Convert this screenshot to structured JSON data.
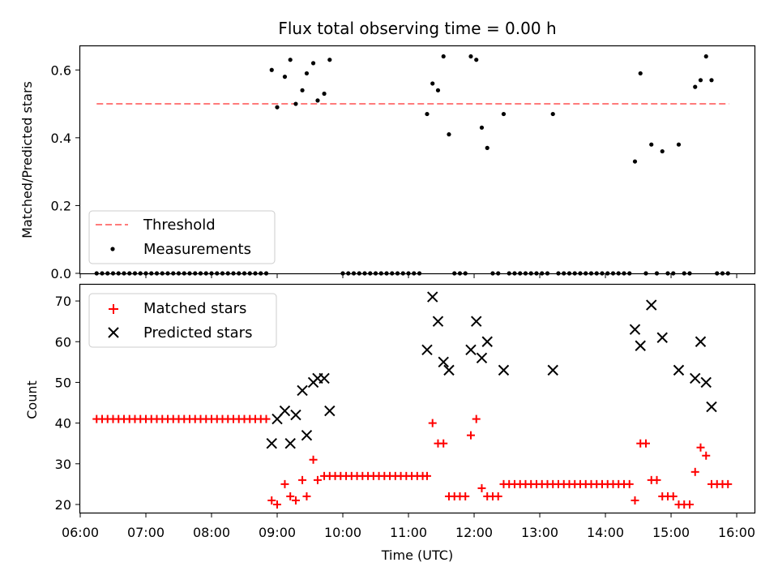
{
  "chart_data": [
    {
      "type": "scatter",
      "title": "Flux total observing time = 0.00 h",
      "xlabel": "",
      "ylabel": "Matched/Predicted stars",
      "xlim": [
        "06:00",
        "16:17"
      ],
      "ylim": [
        0,
        0.67
      ],
      "yticks": [
        0.0,
        0.2,
        0.4,
        0.6
      ],
      "ytick_labels": [
        "0.0",
        "0.2",
        "0.4",
        "0.6"
      ],
      "xticks": [
        "06:00",
        "07:00",
        "08:00",
        "09:00",
        "10:00",
        "11:00",
        "12:00",
        "13:00",
        "14:00",
        "15:00",
        "16:00"
      ],
      "legend_position": "lower-left",
      "threshold": {
        "name": "Threshold",
        "value": 0.5,
        "x_range": [
          "06:15",
          "15:53"
        ],
        "color": "#ff7b7b"
      },
      "measurements": {
        "name": "Measurements",
        "color": "#000000",
        "points": [
          [
            "08:55",
            0.6
          ],
          [
            "09:00",
            0.49
          ],
          [
            "09:07",
            0.58
          ],
          [
            "09:12",
            0.63
          ],
          [
            "09:17",
            0.5
          ],
          [
            "09:23",
            0.54
          ],
          [
            "09:27",
            0.59
          ],
          [
            "09:33",
            0.62
          ],
          [
            "09:37",
            0.51
          ],
          [
            "09:43",
            0.53
          ],
          [
            "09:48",
            0.63
          ],
          [
            "11:17",
            0.47
          ],
          [
            "11:22",
            0.56
          ],
          [
            "11:27",
            0.54
          ],
          [
            "11:32",
            0.64
          ],
          [
            "11:37",
            0.41
          ],
          [
            "11:57",
            0.64
          ],
          [
            "12:02",
            0.63
          ],
          [
            "12:07",
            0.43
          ],
          [
            "12:12",
            0.37
          ],
          [
            "12:27",
            0.47
          ],
          [
            "13:12",
            0.47
          ],
          [
            "14:27",
            0.33
          ],
          [
            "14:32",
            0.59
          ],
          [
            "14:42",
            0.38
          ],
          [
            "14:52",
            0.36
          ],
          [
            "15:07",
            0.38
          ],
          [
            "15:22",
            0.55
          ],
          [
            "15:27",
            0.57
          ],
          [
            "15:32",
            0.64
          ],
          [
            "15:37",
            0.57
          ]
        ],
        "zero_times": [
          "06:15",
          "06:20",
          "06:25",
          "06:30",
          "06:35",
          "06:40",
          "06:45",
          "06:50",
          "06:55",
          "07:00",
          "07:05",
          "07:10",
          "07:15",
          "07:20",
          "07:25",
          "07:30",
          "07:35",
          "07:40",
          "07:45",
          "07:50",
          "07:55",
          "08:00",
          "08:05",
          "08:10",
          "08:15",
          "08:20",
          "08:25",
          "08:30",
          "08:35",
          "08:40",
          "08:45",
          "08:50",
          "10:00",
          "10:05",
          "10:10",
          "10:15",
          "10:20",
          "10:25",
          "10:30",
          "10:35",
          "10:40",
          "10:45",
          "10:50",
          "10:55",
          "11:00",
          "11:05",
          "11:10",
          "11:42",
          "11:47",
          "11:52",
          "12:17",
          "12:22",
          "12:32",
          "12:37",
          "12:42",
          "12:47",
          "12:52",
          "12:57",
          "13:02",
          "13:07",
          "13:17",
          "13:22",
          "13:27",
          "13:32",
          "13:37",
          "13:42",
          "13:47",
          "13:52",
          "13:57",
          "14:02",
          "14:07",
          "14:12",
          "14:17",
          "14:22",
          "14:37",
          "14:47",
          "14:57",
          "15:02",
          "15:12",
          "15:17",
          "15:42",
          "15:47",
          "15:52"
        ]
      }
    },
    {
      "type": "scatter",
      "title": "",
      "xlabel": "Time (UTC)",
      "ylabel": "Count",
      "xlim": [
        "06:00",
        "16:17"
      ],
      "ylim": [
        18,
        74
      ],
      "yticks": [
        20,
        30,
        40,
        50,
        60,
        70
      ],
      "ytick_labels": [
        "20",
        "30",
        "40",
        "50",
        "60",
        "70"
      ],
      "xticks": [
        "06:00",
        "07:00",
        "08:00",
        "09:00",
        "10:00",
        "11:00",
        "12:00",
        "13:00",
        "14:00",
        "15:00",
        "16:00"
      ],
      "xtick_labels": [
        "06:00",
        "07:00",
        "08:00",
        "09:00",
        "10:00",
        "11:00",
        "12:00",
        "13:00",
        "14:00",
        "15:00",
        "16:00"
      ],
      "legend_position": "upper-left",
      "series": [
        {
          "name": "Matched stars",
          "marker": "plus",
          "color": "#ff0000",
          "points": [
            [
              "06:15",
              41
            ],
            [
              "06:20",
              41
            ],
            [
              "06:25",
              41
            ],
            [
              "06:30",
              41
            ],
            [
              "06:35",
              41
            ],
            [
              "06:40",
              41
            ],
            [
              "06:45",
              41
            ],
            [
              "06:50",
              41
            ],
            [
              "06:55",
              41
            ],
            [
              "07:00",
              41
            ],
            [
              "07:05",
              41
            ],
            [
              "07:10",
              41
            ],
            [
              "07:15",
              41
            ],
            [
              "07:20",
              41
            ],
            [
              "07:25",
              41
            ],
            [
              "07:30",
              41
            ],
            [
              "07:35",
              41
            ],
            [
              "07:40",
              41
            ],
            [
              "07:45",
              41
            ],
            [
              "07:50",
              41
            ],
            [
              "07:55",
              41
            ],
            [
              "08:00",
              41
            ],
            [
              "08:05",
              41
            ],
            [
              "08:10",
              41
            ],
            [
              "08:15",
              41
            ],
            [
              "08:20",
              41
            ],
            [
              "08:25",
              41
            ],
            [
              "08:30",
              41
            ],
            [
              "08:35",
              41
            ],
            [
              "08:40",
              41
            ],
            [
              "08:45",
              41
            ],
            [
              "08:50",
              41
            ],
            [
              "08:55",
              21
            ],
            [
              "09:00",
              20
            ],
            [
              "09:07",
              25
            ],
            [
              "09:12",
              22
            ],
            [
              "09:17",
              21
            ],
            [
              "09:23",
              26
            ],
            [
              "09:27",
              22
            ],
            [
              "09:33",
              31
            ],
            [
              "09:37",
              26
            ],
            [
              "09:43",
              27
            ],
            [
              "09:48",
              27
            ],
            [
              "09:53",
              27
            ],
            [
              "09:58",
              27
            ],
            [
              "10:03",
              27
            ],
            [
              "10:08",
              27
            ],
            [
              "10:13",
              27
            ],
            [
              "10:18",
              27
            ],
            [
              "10:23",
              27
            ],
            [
              "10:28",
              27
            ],
            [
              "10:33",
              27
            ],
            [
              "10:38",
              27
            ],
            [
              "10:43",
              27
            ],
            [
              "10:48",
              27
            ],
            [
              "10:53",
              27
            ],
            [
              "10:58",
              27
            ],
            [
              "11:03",
              27
            ],
            [
              "11:08",
              27
            ],
            [
              "11:13",
              27
            ],
            [
              "11:17",
              27
            ],
            [
              "11:22",
              40
            ],
            [
              "11:27",
              35
            ],
            [
              "11:32",
              35
            ],
            [
              "11:37",
              22
            ],
            [
              "11:42",
              22
            ],
            [
              "11:47",
              22
            ],
            [
              "11:52",
              22
            ],
            [
              "11:57",
              37
            ],
            [
              "12:02",
              41
            ],
            [
              "12:07",
              24
            ],
            [
              "12:12",
              22
            ],
            [
              "12:17",
              22
            ],
            [
              "12:22",
              22
            ],
            [
              "12:27",
              25
            ],
            [
              "12:32",
              25
            ],
            [
              "12:37",
              25
            ],
            [
              "12:42",
              25
            ],
            [
              "12:47",
              25
            ],
            [
              "12:52",
              25
            ],
            [
              "12:57",
              25
            ],
            [
              "13:02",
              25
            ],
            [
              "13:07",
              25
            ],
            [
              "13:12",
              25
            ],
            [
              "13:17",
              25
            ],
            [
              "13:22",
              25
            ],
            [
              "13:27",
              25
            ],
            [
              "13:32",
              25
            ],
            [
              "13:37",
              25
            ],
            [
              "13:42",
              25
            ],
            [
              "13:47",
              25
            ],
            [
              "13:52",
              25
            ],
            [
              "13:57",
              25
            ],
            [
              "14:02",
              25
            ],
            [
              "14:07",
              25
            ],
            [
              "14:12",
              25
            ],
            [
              "14:17",
              25
            ],
            [
              "14:22",
              25
            ],
            [
              "14:27",
              21
            ],
            [
              "14:32",
              35
            ],
            [
              "14:37",
              35
            ],
            [
              "14:42",
              26
            ],
            [
              "14:47",
              26
            ],
            [
              "14:52",
              22
            ],
            [
              "14:57",
              22
            ],
            [
              "15:02",
              22
            ],
            [
              "15:07",
              20
            ],
            [
              "15:12",
              20
            ],
            [
              "15:17",
              20
            ],
            [
              "15:22",
              28
            ],
            [
              "15:27",
              34
            ],
            [
              "15:32",
              32
            ],
            [
              "15:37",
              25
            ],
            [
              "15:42",
              25
            ],
            [
              "15:47",
              25
            ],
            [
              "15:52",
              25
            ]
          ]
        },
        {
          "name": "Predicted stars",
          "marker": "x",
          "color": "#000000",
          "points": [
            [
              "08:55",
              35
            ],
            [
              "09:00",
              41
            ],
            [
              "09:07",
              43
            ],
            [
              "09:12",
              35
            ],
            [
              "09:17",
              42
            ],
            [
              "09:23",
              48
            ],
            [
              "09:27",
              37
            ],
            [
              "09:33",
              50
            ],
            [
              "09:37",
              51
            ],
            [
              "09:43",
              51
            ],
            [
              "09:48",
              43
            ],
            [
              "11:17",
              58
            ],
            [
              "11:22",
              71
            ],
            [
              "11:27",
              65
            ],
            [
              "11:32",
              55
            ],
            [
              "11:37",
              53
            ],
            [
              "11:57",
              58
            ],
            [
              "12:02",
              65
            ],
            [
              "12:07",
              56
            ],
            [
              "12:12",
              60
            ],
            [
              "12:27",
              53
            ],
            [
              "13:12",
              53
            ],
            [
              "14:27",
              63
            ],
            [
              "14:32",
              59
            ],
            [
              "14:42",
              69
            ],
            [
              "14:52",
              61
            ],
            [
              "15:07",
              53
            ],
            [
              "15:22",
              51
            ],
            [
              "15:27",
              60
            ],
            [
              "15:32",
              50
            ],
            [
              "15:37",
              44
            ]
          ]
        }
      ]
    }
  ]
}
